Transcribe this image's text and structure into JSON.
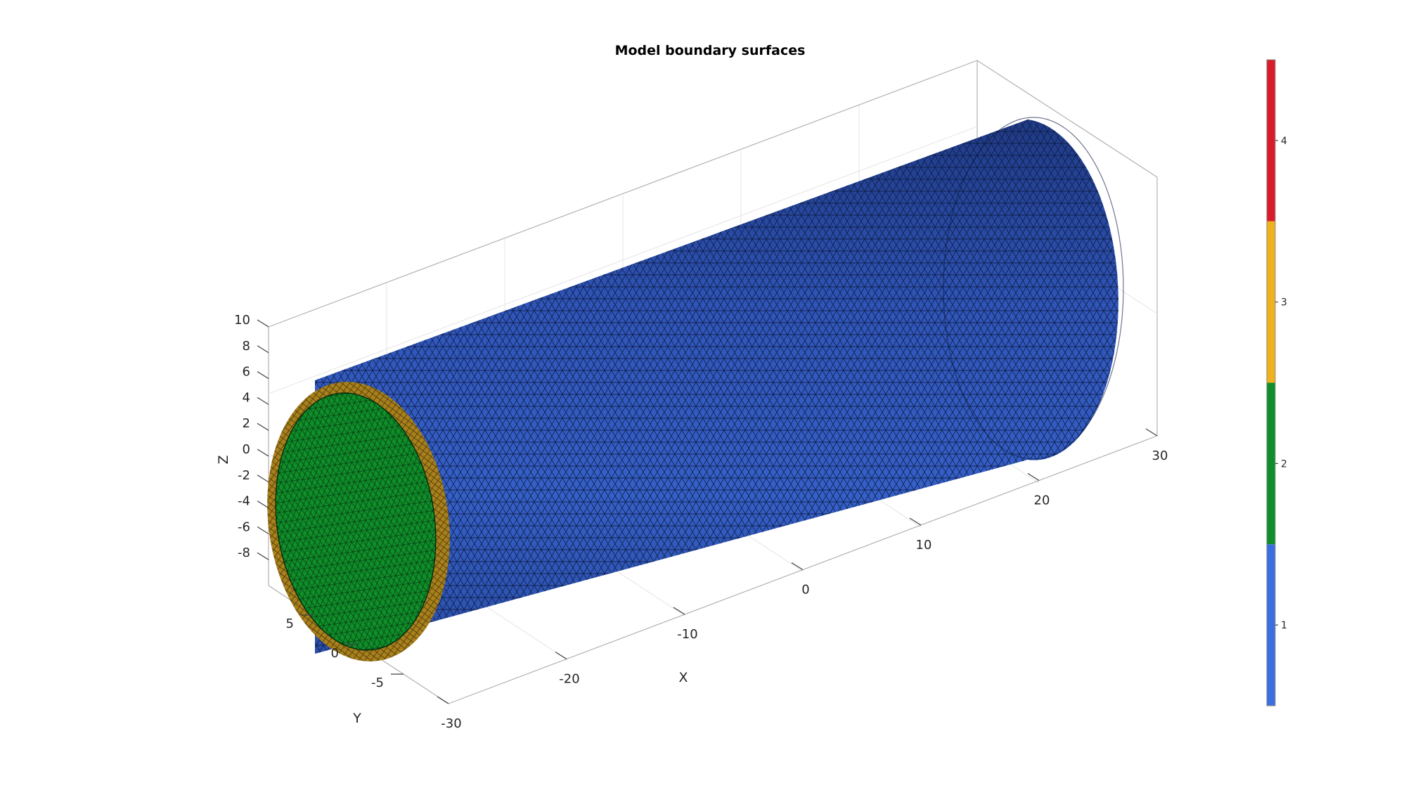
{
  "chart_data": {
    "type": "3d-surface",
    "title": "Model boundary surfaces",
    "xlabel": "X",
    "ylabel": "Y",
    "zlabel": "Z",
    "xticks": [
      "-30",
      "-20",
      "-10",
      "0",
      "10",
      "20",
      "30"
    ],
    "yticks": [
      "-5",
      "0",
      "5"
    ],
    "zticks": [
      "-8",
      "-6",
      "-4",
      "-2",
      "0",
      "2",
      "4",
      "6",
      "8",
      "10"
    ],
    "xlim": [
      -30,
      30
    ],
    "ylim": [
      -10,
      10
    ],
    "zlim": [
      -10,
      10
    ],
    "grid": true,
    "colorbar": {
      "ticks": [
        "1",
        "2",
        "3",
        "4"
      ],
      "colors": [
        "#3a6fe0",
        "#0f8f2a",
        "#f0b21c",
        "#d91c2a"
      ]
    },
    "surfaces": [
      {
        "id": 1,
        "shape": "outer cylinder wall",
        "color": "#2f55b8"
      },
      {
        "id": 2,
        "shape": "inner cylinder wall",
        "color": "#0f8f2a"
      },
      {
        "id": 3,
        "shape": "end cap ring",
        "color": "#a8801c"
      }
    ]
  }
}
